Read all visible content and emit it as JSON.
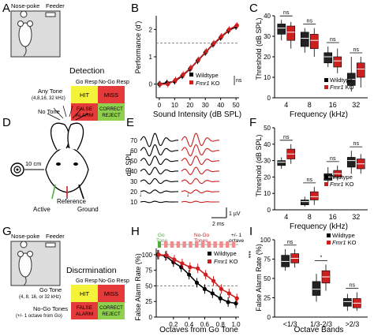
{
  "panel_letters": {
    "a": "A",
    "b": "B",
    "c": "C",
    "d": "D",
    "e": "E",
    "f": "F",
    "g": "G",
    "h": "H",
    "i": "I"
  },
  "legend": {
    "wildtype": "Wildtype",
    "ko": "Fmr1 KO",
    "ko_plain": "Fmr1",
    "ko_suffix": " KO"
  },
  "colors": {
    "wildtype": "#000000",
    "ko": "#cc1f1f",
    "hit": "#f5f23a",
    "miss": "#e63a3a",
    "false_alarm": "#e63a3a",
    "correct_reject": "#8fd14f",
    "go_green": "#4caf3a",
    "nogo_pink": "#f28b8b"
  },
  "panel_a": {
    "nose_poke": "Nose-poke",
    "feeder": "Feeder",
    "title": "Detection",
    "go_resp": "Go Resp",
    "nogo_resp": "No-Go Resp",
    "row1_label": "Any Tone",
    "row1_sub": "(4,8,16, 32 kHz)",
    "row2_label": "No Tone",
    "hit": "HIT",
    "miss": "MISS",
    "false_alarm_1": "FALSE",
    "false_alarm_2": "ALARM",
    "correct_reject_1": "CORRECT",
    "correct_reject_2": "REJECT"
  },
  "panel_b": {
    "ylabel": "Performance (d')",
    "xlabel": "Sound Intensity (dB SPL)",
    "ns": "ns",
    "chart_data": {
      "type": "line",
      "x": [
        0,
        5,
        10,
        15,
        20,
        25,
        30,
        35,
        40,
        45,
        50
      ],
      "xticks": [
        "0",
        "10",
        "20",
        "30",
        "40",
        "50"
      ],
      "yticks": [
        "0",
        "1",
        "2"
      ],
      "xlim": [
        -2,
        52
      ],
      "ylim": [
        -0.5,
        2.5
      ],
      "reference_line_y": 1.5,
      "series": [
        {
          "name": "Wildtype",
          "values": [
            0.0,
            0.05,
            0.1,
            0.3,
            0.55,
            0.85,
            1.15,
            1.45,
            1.7,
            1.95,
            2.1
          ]
        },
        {
          "name": "Fmr1 KO",
          "values": [
            0.0,
            0.0,
            0.15,
            0.35,
            0.6,
            0.9,
            1.2,
            1.5,
            1.75,
            2.0,
            2.15
          ]
        }
      ]
    }
  },
  "panel_c": {
    "ylabel": "Threshold (dB SPL)",
    "xlabel": "Frequency (kHz)",
    "chart_data": {
      "type": "box",
      "categories": [
        "4",
        "8",
        "16",
        "32"
      ],
      "yticks": [
        "0",
        "10",
        "20",
        "30",
        "40"
      ],
      "ylim": [
        0,
        40
      ],
      "significance": [
        "ns",
        "ns",
        "ns",
        "ns"
      ],
      "series": [
        {
          "name": "Wildtype",
          "boxes": [
            [
              28,
              31,
              34,
              36,
              38
            ],
            [
              22,
              25,
              29,
              32,
              34
            ],
            [
              15,
              17,
              20,
              22,
              25
            ],
            [
              3,
              6,
              9,
              12,
              20
            ]
          ]
        },
        {
          "name": "Fmr1 KO",
          "boxes": [
            [
              24,
              28,
              32,
              35,
              37
            ],
            [
              20,
              24,
              28,
              31,
              34
            ],
            [
              12,
              15,
              18,
              20,
              24
            ],
            [
              5,
              10,
              14,
              17,
              20
            ]
          ]
        }
      ]
    }
  },
  "panel_d": {
    "distance": "10 cm",
    "reference": "Reference",
    "active": "Active",
    "ground": "Ground"
  },
  "panel_e": {
    "ylabel": "dB SPL",
    "levels": [
      "70",
      "60",
      "50",
      "40",
      "30",
      "20",
      "10"
    ],
    "scale_y": "1 µV",
    "scale_x": "2 ms"
  },
  "panel_f": {
    "ylabel": "Threshold (dB SPL)",
    "xlabel": "Frequency (kHz)",
    "chart_data": {
      "type": "box",
      "categories": [
        "4",
        "8",
        "16",
        "32"
      ],
      "yticks": [
        "0",
        "10",
        "20",
        "30",
        "40",
        "50"
      ],
      "ylim": [
        0,
        50
      ],
      "significance": [
        "ns",
        "ns",
        "ns",
        "ns"
      ],
      "series": [
        {
          "name": "Wildtype",
          "boxes": [
            [
              25,
              27,
              29,
              30,
              32
            ],
            [
              2,
              3,
              5,
              6,
              8
            ],
            [
              16,
              18,
              20,
              22,
              26
            ],
            [
              22,
              26,
              30,
              32,
              36
            ]
          ]
        },
        {
          "name": "Fmr1 KO",
          "boxes": [
            [
              28,
              31,
              34,
              37,
              40
            ],
            [
              3,
              6,
              8,
              11,
              14
            ],
            [
              18,
              20,
              22,
              24,
              27
            ],
            [
              22,
              25,
              28,
              31,
              34
            ]
          ]
        }
      ]
    }
  },
  "panel_g": {
    "nose_poke": "Nose-poke",
    "feeder": "Feeder",
    "title": "Discrmination",
    "go_resp": "Go Resp",
    "nogo_resp": "No-Go Resp",
    "row1_label": "Go Tone",
    "row1_sub": "(4, 8, 16, or 32 kHz)",
    "row2_label": "No-Go Tones",
    "row2_sub": "(+/- 1 octave from Go)",
    "hit": "HIT",
    "miss": "MISS",
    "false_alarm_1": "FALSE",
    "false_alarm_2": "ALARM",
    "correct_reject_1": "CORRECT",
    "correct_reject_2": "REJECT"
  },
  "panel_h": {
    "ylabel": "False Alarm Rate (%)",
    "xlabel": "Octaves from Go Tone",
    "go_1": "Go",
    "go_2": "Tone",
    "nogo_1": "No-Go",
    "nogo_2": "Tones",
    "oct_1": "+/- 1",
    "oct_2": "octave",
    "sig": "***",
    "chart_data": {
      "type": "line",
      "x": [
        0,
        0.1,
        0.2,
        0.3,
        0.4,
        0.5,
        0.6,
        0.7,
        0.8,
        0.9,
        1.0
      ],
      "xticks": [
        "0.2",
        "0.4",
        "0.6",
        "0.8",
        "1.0"
      ],
      "yticks": [
        "0",
        "25",
        "50",
        "75",
        "100"
      ],
      "xlim": [
        -0.02,
        1.04
      ],
      "ylim": [
        0,
        110
      ],
      "reference_line_y": 50,
      "series": [
        {
          "name": "Wildtype",
          "values": [
            100,
            98,
            88,
            80,
            68,
            55,
            45,
            38,
            30,
            24,
            22
          ]
        },
        {
          "name": "Fmr1 KO",
          "values": [
            100,
            99,
            92,
            86,
            80,
            78,
            68,
            58,
            45,
            38,
            30
          ]
        }
      ]
    }
  },
  "panel_i": {
    "ylabel": "False Alarm Rate (%)",
    "xlabel": "Octave Bands",
    "chart_data": {
      "type": "box",
      "categories": [
        "<1/3",
        "1/3-2/3",
        ">2/3"
      ],
      "yticks": [
        "0",
        "25",
        "50",
        "75",
        "100"
      ],
      "ylim": [
        0,
        100
      ],
      "significance": [
        "ns",
        "*",
        "ns"
      ],
      "series": [
        {
          "name": "Wildtype",
          "boxes": [
            [
              60,
              65,
              72,
              80,
              88
            ],
            [
              20,
              28,
              36,
              46,
              56
            ],
            [
              8,
              14,
              20,
              24,
              30
            ]
          ]
        },
        {
          "name": "Fmr1 KO",
          "boxes": [
            [
              64,
              70,
              76,
              82,
              88
            ],
            [
              34,
              44,
              52,
              60,
              68
            ],
            [
              8,
              12,
              18,
              24,
              32
            ]
          ]
        }
      ]
    }
  }
}
